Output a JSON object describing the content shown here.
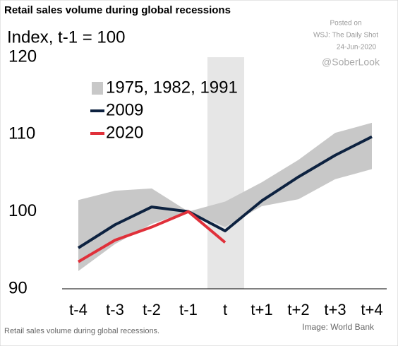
{
  "chart_data": {
    "type": "line",
    "title": "Retail sales volume during global recessions",
    "y_label": "Index, t-1 = 100",
    "annotations": [
      "Posted on",
      "WSJ: The Daily Shot",
      "24-Jun-2020",
      "@SoberLook"
    ],
    "footnote": "Retail sales volume during global recessions.",
    "source": "Image: World Bank",
    "categories": [
      "t-4",
      "t-3",
      "t-2",
      "t-1",
      "t",
      "t+1",
      "t+2",
      "t+3",
      "t+4"
    ],
    "band": {
      "name": "1975, 1982, 1991",
      "color": "#c8c8c8",
      "upper": [
        101.5,
        102.7,
        103,
        100,
        101.3,
        103.8,
        106.7,
        110.2,
        111.5
      ],
      "lower": [
        92.3,
        95.8,
        98.4,
        100,
        98,
        100.7,
        101.6,
        104.2,
        105.5
      ]
    },
    "series": [
      {
        "name": "2009",
        "color": "#0d2240",
        "values": [
          95.3,
          98.3,
          100.6,
          100,
          97.5,
          101.4,
          104.5,
          107.3,
          109.7
        ]
      },
      {
        "name": "2020",
        "color": "#e0303a",
        "values": [
          93.5,
          96.3,
          98,
          100,
          96,
          null,
          null,
          null,
          null
        ]
      }
    ],
    "ylim": [
      90,
      120
    ],
    "yticks": [
      90,
      100,
      110,
      120
    ],
    "grid": false
  }
}
